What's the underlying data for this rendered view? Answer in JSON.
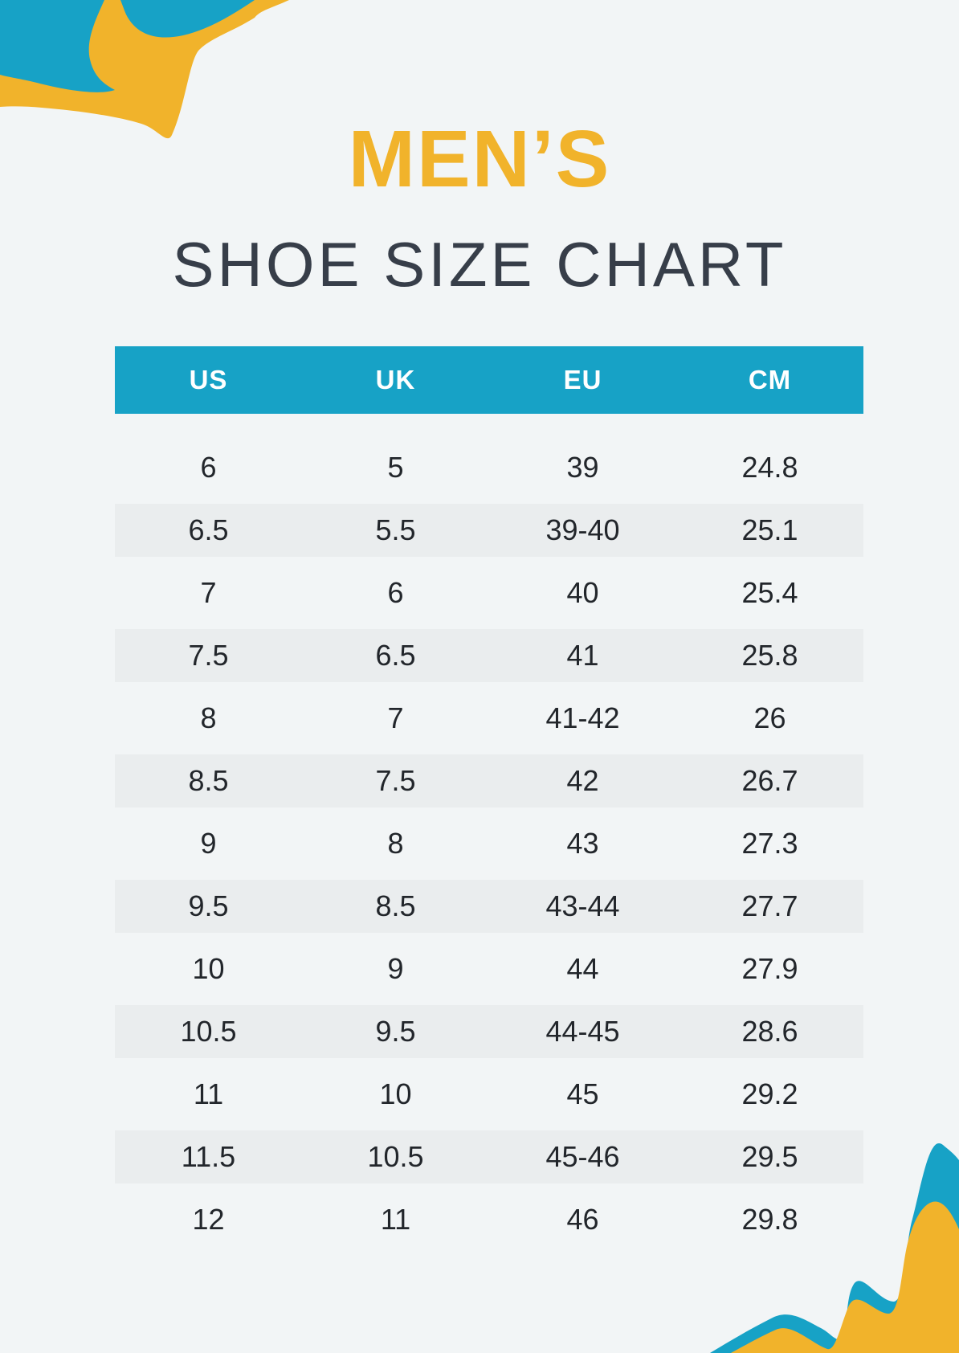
{
  "header": {
    "title_accent": "MEN’S",
    "title_main": "SHOE SIZE CHART"
  },
  "colors": {
    "accent_blue": "#17A2C6",
    "accent_yellow": "#F1B32B",
    "page_bg": "#F2F5F6",
    "stripe_bg": "#EAEDEE",
    "header_text": "#FFFFFF",
    "body_text": "#22262B",
    "subtitle_text": "#373E49"
  },
  "chart_data": {
    "type": "table",
    "title": "Men’s Shoe Size Chart",
    "columns": [
      "US",
      "UK",
      "EU",
      "CM"
    ],
    "rows": [
      [
        "6",
        "5",
        "39",
        "24.8"
      ],
      [
        "6.5",
        "5.5",
        "39-40",
        "25.1"
      ],
      [
        "7",
        "6",
        "40",
        "25.4"
      ],
      [
        "7.5",
        "6.5",
        "41",
        "25.8"
      ],
      [
        "8",
        "7",
        "41-42",
        "26"
      ],
      [
        "8.5",
        "7.5",
        "42",
        "26.7"
      ],
      [
        "9",
        "8",
        "43",
        "27.3"
      ],
      [
        "9.5",
        "8.5",
        "43-44",
        "27.7"
      ],
      [
        "10",
        "9",
        "44",
        "27.9"
      ],
      [
        "10.5",
        "9.5",
        "44-45",
        "28.6"
      ],
      [
        "11",
        "10",
        "45",
        "29.2"
      ],
      [
        "11.5",
        "10.5",
        "45-46",
        "29.5"
      ],
      [
        "12",
        "11",
        "46",
        "29.8"
      ]
    ],
    "layout": {
      "header_background": "#17A2C6",
      "striped_rows": true,
      "stripe_color": "#EAEDEE"
    }
  }
}
